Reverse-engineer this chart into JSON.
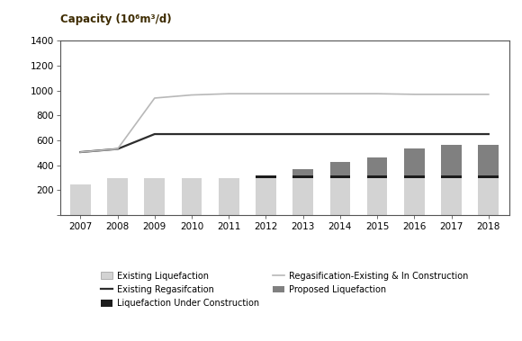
{
  "years": [
    2007,
    2008,
    2009,
    2010,
    2011,
    2012,
    2013,
    2014,
    2015,
    2016,
    2017,
    2018
  ],
  "existing_liquefaction": [
    248,
    295,
    295,
    295,
    295,
    295,
    295,
    295,
    295,
    295,
    295,
    295
  ],
  "liquefaction_under_construction": [
    0,
    0,
    0,
    0,
    0,
    25,
    25,
    25,
    25,
    25,
    25,
    25
  ],
  "proposed_liquefaction": [
    0,
    0,
    0,
    0,
    0,
    0,
    45,
    105,
    145,
    215,
    245,
    240
  ],
  "existing_regasification": [
    505,
    530,
    650,
    650,
    650,
    650,
    650,
    650,
    650,
    650,
    650,
    650
  ],
  "regasification_existing_in_construction": [
    505,
    530,
    940,
    965,
    975,
    975,
    975,
    975,
    975,
    970,
    970,
    970
  ],
  "bar_color_existing": "#d3d3d3",
  "bar_color_construction": "#1c1c1c",
  "bar_color_proposed": "#808080",
  "line_color_existing_regas": "#2d2d2d",
  "line_color_regas_construction": "#b8b8b8",
  "ylabel": "Capacity (10⁶m³/d)",
  "ylabel_color": "#3d2b00",
  "ylim": [
    0,
    1400
  ],
  "yticks": [
    0,
    200,
    400,
    600,
    800,
    1000,
    1200,
    1400
  ],
  "background_color": "#ffffff",
  "bar_width": 0.55
}
